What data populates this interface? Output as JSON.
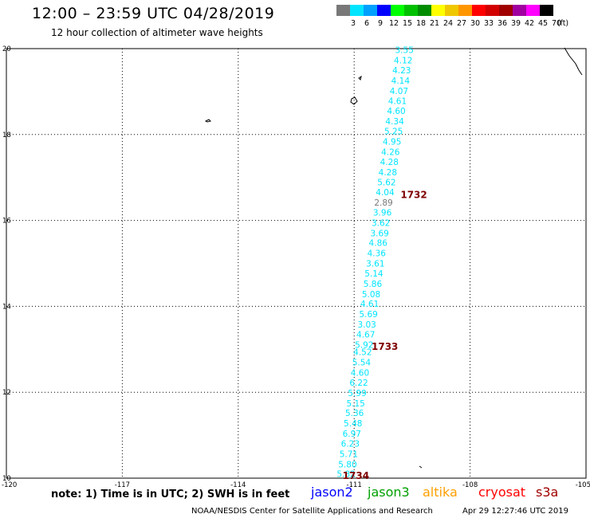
{
  "header": {
    "title": "12:00 – 23:59 UTC 04/28/2019",
    "subtitle": "12 hour collection of altimeter wave heights"
  },
  "legend": {
    "unit_label": "(ft)",
    "bins": [
      {
        "label": "3",
        "color": "#787878"
      },
      {
        "label": "6",
        "color": "#00e5ff"
      },
      {
        "label": "9",
        "color": "#00a0ff"
      },
      {
        "label": "12",
        "color": "#0000ff"
      },
      {
        "label": "15",
        "color": "#00ff00"
      },
      {
        "label": "18",
        "color": "#00c000"
      },
      {
        "label": "21",
        "color": "#008c00"
      },
      {
        "label": "24",
        "color": "#ffff00"
      },
      {
        "label": "27",
        "color": "#f0c800"
      },
      {
        "label": "30",
        "color": "#ff9600"
      },
      {
        "label": "33",
        "color": "#ff0000"
      },
      {
        "label": "36",
        "color": "#d20000"
      },
      {
        "label": "39",
        "color": "#a00000"
      },
      {
        "label": "42",
        "color": "#a000a0"
      },
      {
        "label": "45",
        "color": "#ff00ff"
      },
      {
        "label": "70",
        "color": "#000000"
      }
    ]
  },
  "footer": {
    "note": "note: 1) Time is in UTC; 2) SWH is in feet",
    "satellites": [
      {
        "name": "jason2",
        "color": "#0000ff"
      },
      {
        "name": "jason3",
        "color": "#00a000"
      },
      {
        "name": "altika",
        "color": "#ffa000"
      },
      {
        "name": "cryosat",
        "color": "#ff0000"
      },
      {
        "name": "s3a",
        "color": "#a00000"
      }
    ],
    "credit": "NOAA/NESDIS Center for Satellite Applications and Research",
    "timestamp": "Apr 29 12:27:46 UTC 2019"
  },
  "chart_data": {
    "type": "scatter",
    "xlim": [
      -120,
      -105
    ],
    "ylim": [
      10,
      20
    ],
    "x_ticks": [
      "-120",
      "-117",
      "-114",
      "-111",
      "-108",
      "-105"
    ],
    "y_ticks": [
      "10",
      "12",
      "14",
      "16",
      "18",
      "20"
    ],
    "grid": true,
    "series": [
      {
        "name": "cryosat",
        "point_color": "#00e5ff",
        "points": [
          {
            "x": -109.7,
            "y": 19.95,
            "swh": "3.55",
            "color": "#00e5ff"
          },
          {
            "x": -109.73,
            "y": 19.71,
            "swh": "4.12",
            "color": "#00e5ff"
          },
          {
            "x": -109.77,
            "y": 19.48,
            "swh": "4.23",
            "color": "#00e5ff"
          },
          {
            "x": -109.8,
            "y": 19.24,
            "swh": "4.14",
            "color": "#00e5ff"
          },
          {
            "x": -109.84,
            "y": 19.0,
            "swh": "4.07",
            "color": "#00e5ff"
          },
          {
            "x": -109.88,
            "y": 18.77,
            "swh": "4.61",
            "color": "#00e5ff"
          },
          {
            "x": -109.91,
            "y": 18.53,
            "swh": "4.60",
            "color": "#00e5ff"
          },
          {
            "x": -109.95,
            "y": 18.29,
            "swh": "4.34",
            "color": "#00e5ff"
          },
          {
            "x": -109.98,
            "y": 18.06,
            "swh": "5.25",
            "color": "#00e5ff"
          },
          {
            "x": -110.02,
            "y": 17.82,
            "swh": "4.95",
            "color": "#00e5ff"
          },
          {
            "x": -110.06,
            "y": 17.58,
            "swh": "4.26",
            "color": "#00e5ff"
          },
          {
            "x": -110.09,
            "y": 17.35,
            "swh": "4.28",
            "color": "#00e5ff"
          },
          {
            "x": -110.13,
            "y": 17.11,
            "swh": "4.28",
            "color": "#00e5ff"
          },
          {
            "x": -110.16,
            "y": 16.87,
            "swh": "5.62",
            "color": "#00e5ff"
          },
          {
            "x": -110.2,
            "y": 16.64,
            "swh": "4.04",
            "color": "#00e5ff"
          },
          {
            "x": -110.24,
            "y": 16.4,
            "swh": "2.89",
            "color": "#787878"
          },
          {
            "x": -110.27,
            "y": 16.17,
            "swh": "3.96",
            "color": "#00e5ff"
          },
          {
            "x": -110.31,
            "y": 15.93,
            "swh": "3.62",
            "color": "#00e5ff"
          },
          {
            "x": -110.34,
            "y": 15.69,
            "swh": "3.69",
            "color": "#00e5ff"
          },
          {
            "x": -110.38,
            "y": 15.46,
            "swh": "4.86",
            "color": "#00e5ff"
          },
          {
            "x": -110.42,
            "y": 15.22,
            "swh": "4.36",
            "color": "#00e5ff"
          },
          {
            "x": -110.45,
            "y": 14.98,
            "swh": "3.61",
            "color": "#00e5ff"
          },
          {
            "x": -110.49,
            "y": 14.75,
            "swh": "5.14",
            "color": "#00e5ff"
          },
          {
            "x": -110.52,
            "y": 14.51,
            "swh": "5.86",
            "color": "#00e5ff"
          },
          {
            "x": -110.56,
            "y": 14.27,
            "swh": "5.08",
            "color": "#00e5ff"
          },
          {
            "x": -110.6,
            "y": 14.04,
            "swh": "4.61",
            "color": "#00e5ff"
          },
          {
            "x": -110.63,
            "y": 13.8,
            "swh": "5.69",
            "color": "#00e5ff"
          },
          {
            "x": -110.67,
            "y": 13.56,
            "swh": "3.03",
            "color": "#00e5ff"
          },
          {
            "x": -110.7,
            "y": 13.33,
            "swh": "4.67",
            "color": "#00e5ff"
          },
          {
            "x": -110.74,
            "y": 13.09,
            "swh": "5.92",
            "color": "#00e5ff"
          },
          {
            "x": -110.78,
            "y": 12.92,
            "swh": "4.52",
            "color": "#00e5ff"
          },
          {
            "x": -110.81,
            "y": 12.68,
            "swh": "5.54",
            "color": "#00e5ff"
          },
          {
            "x": -110.85,
            "y": 12.44,
            "swh": "4.60",
            "color": "#00e5ff"
          },
          {
            "x": -110.88,
            "y": 12.21,
            "swh": "6.22",
            "color": "#00e5ff"
          },
          {
            "x": -110.92,
            "y": 11.97,
            "swh": "5.99",
            "color": "#00e5ff"
          },
          {
            "x": -110.96,
            "y": 11.73,
            "swh": "5.15",
            "color": "#00e5ff"
          },
          {
            "x": -110.99,
            "y": 11.5,
            "swh": "5.36",
            "color": "#00e5ff"
          },
          {
            "x": -111.03,
            "y": 11.26,
            "swh": "5.48",
            "color": "#00e5ff"
          },
          {
            "x": -111.06,
            "y": 11.02,
            "swh": "6.97",
            "color": "#00e5ff"
          },
          {
            "x": -111.1,
            "y": 10.79,
            "swh": "6.23",
            "color": "#00e5ff"
          },
          {
            "x": -111.14,
            "y": 10.55,
            "swh": "5.71",
            "color": "#00e5ff"
          },
          {
            "x": -111.17,
            "y": 10.31,
            "swh": "5.80",
            "color": "#00e5ff"
          },
          {
            "x": -111.21,
            "y": 10.08,
            "swh": "5.82",
            "color": "#00e5ff"
          }
        ]
      }
    ],
    "time_labels": [
      {
        "x": -109.8,
        "y": 16.6,
        "label": "1732",
        "color": "#800000"
      },
      {
        "x": -110.55,
        "y": 13.06,
        "label": "1733",
        "color": "#800000"
      },
      {
        "x": -111.3,
        "y": 10.06,
        "label": "1734",
        "color": "#800000"
      }
    ]
  }
}
